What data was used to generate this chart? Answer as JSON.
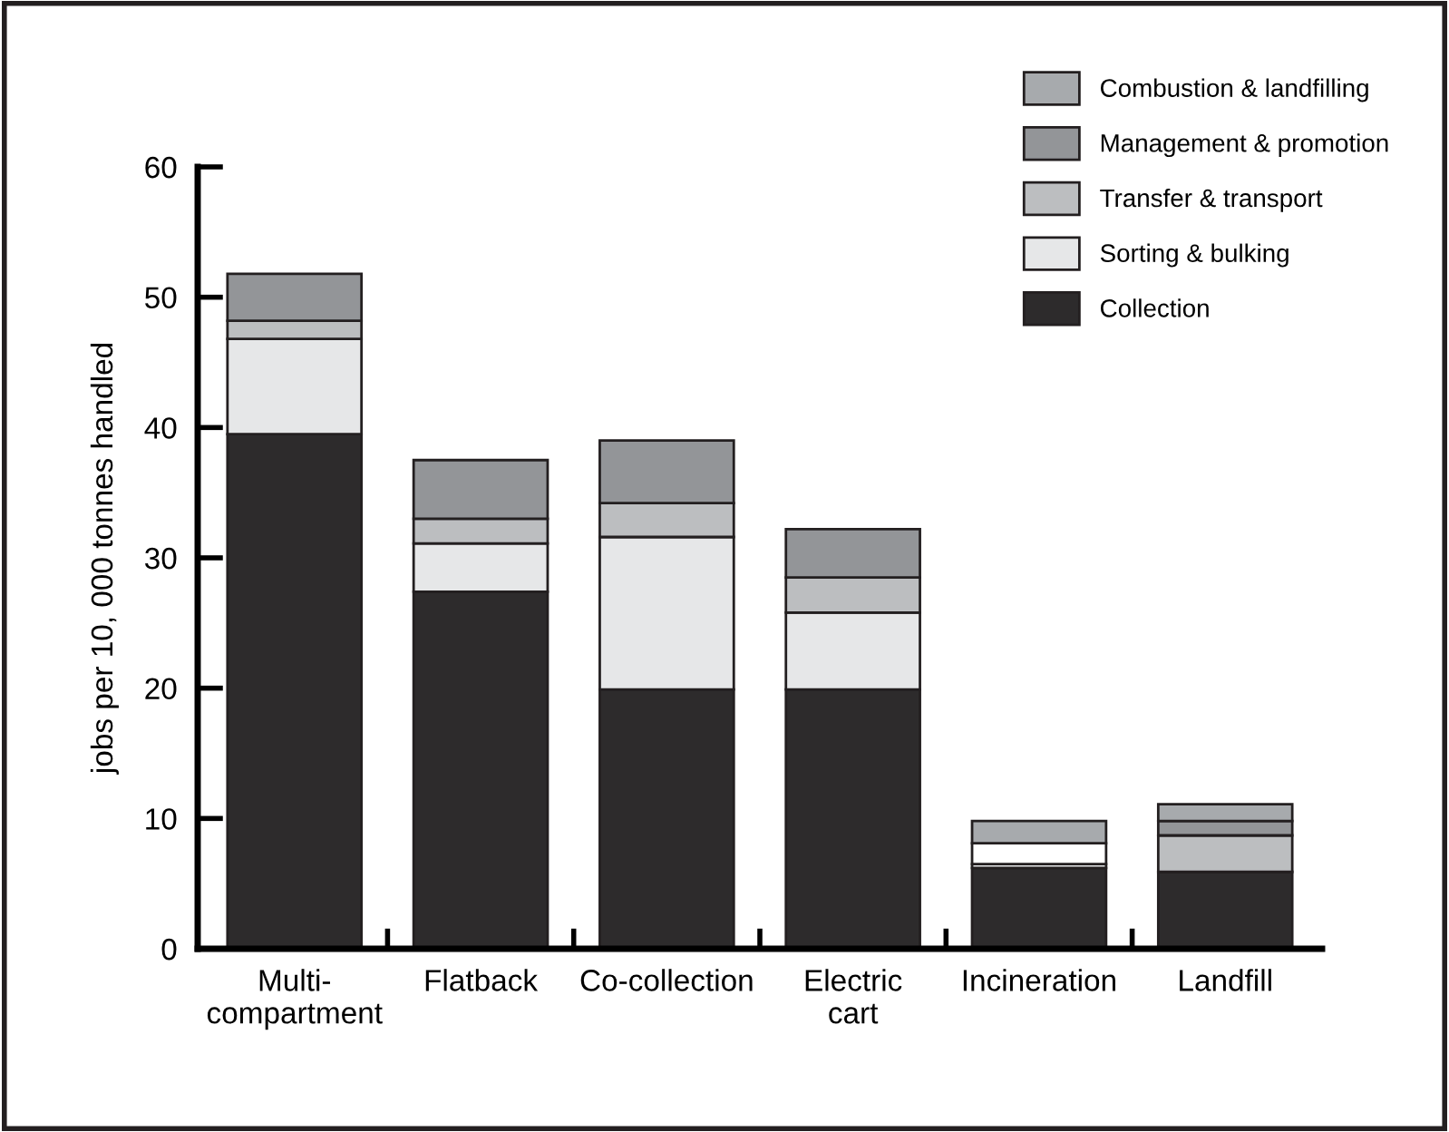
{
  "chart_data": {
    "type": "bar",
    "stacked": true,
    "ylabel": "jobs per 10, 000 tonnes handled",
    "categories": [
      "Multi-\ncompartment",
      "Flatback",
      "Co-collection",
      "Electric\ncart",
      "Incineration",
      "Landfill"
    ],
    "series": [
      {
        "name": "Collection",
        "color": "#2d2b2c",
        "values": [
          39.5,
          27.4,
          19.9,
          19.9,
          6.2,
          5.9
        ]
      },
      {
        "name": "Sorting & bulking",
        "color": "#e6e7e8",
        "values": [
          7.3,
          3.7,
          11.7,
          5.9,
          0.3,
          0
        ]
      },
      {
        "name": "Transfer & transport",
        "color": "#bcbec0",
        "colors": [
          "#bcbec0",
          "#bcbec0",
          "#bcbec0",
          "#bcbec0",
          "#ffffff",
          "#bcbec0"
        ],
        "values": [
          1.4,
          1.9,
          2.6,
          2.7,
          1.6,
          2.8
        ]
      },
      {
        "name": "Management & promotion",
        "color": "#939598",
        "values": [
          3.6,
          4.5,
          4.8,
          3.7,
          0,
          1.1
        ]
      },
      {
        "name": "Combustion & landfilling",
        "color": "#a7aaad",
        "values": [
          0,
          0,
          0,
          0,
          1.7,
          1.3
        ]
      }
    ],
    "ylim": [
      0,
      60
    ],
    "yticks": [
      0,
      10,
      20,
      30,
      40,
      50,
      60
    ],
    "legend": "top right",
    "grid": false
  }
}
